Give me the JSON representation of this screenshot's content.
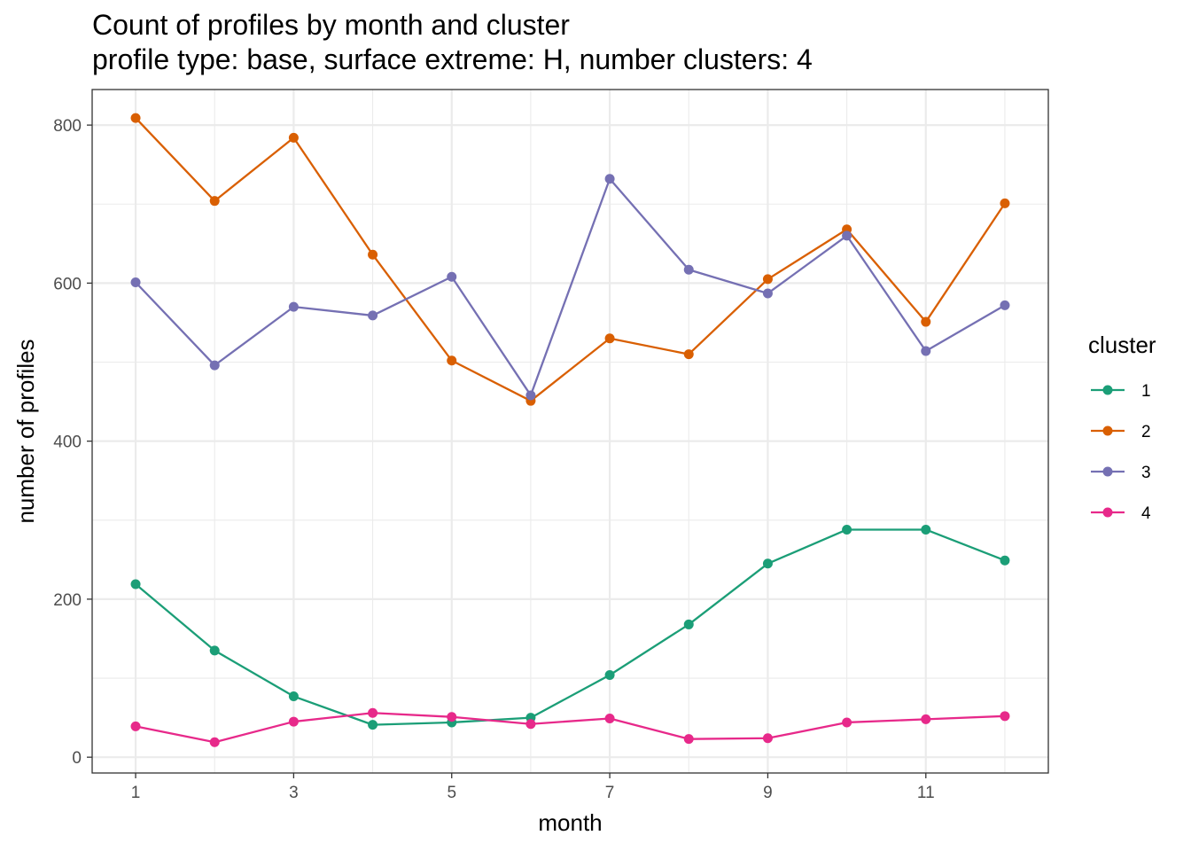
{
  "chart_data": {
    "type": "line",
    "title": "Count of profiles by month and cluster",
    "subtitle": "profile type: base, surface extreme: H, number clusters: 4",
    "xlabel": "month",
    "ylabel": "number of profiles",
    "xlim": [
      0.45,
      12.55
    ],
    "ylim": [
      -20,
      845
    ],
    "xticks": [
      1,
      3,
      5,
      7,
      9,
      11
    ],
    "xminor": [
      2,
      4,
      6,
      8,
      10,
      12
    ],
    "yticks": [
      0,
      200,
      400,
      600,
      800
    ],
    "yminor": [
      100,
      300,
      500,
      700
    ],
    "grid": true,
    "legend": {
      "title": "cluster",
      "position": "right"
    },
    "x": [
      1,
      2,
      3,
      4,
      5,
      6,
      7,
      8,
      9,
      10,
      11,
      12
    ],
    "series": [
      {
        "name": "1",
        "color": "#1B9E77",
        "values": [
          219,
          135,
          77,
          41,
          44,
          50,
          104,
          168,
          245,
          288,
          288,
          249
        ]
      },
      {
        "name": "2",
        "color": "#D95F02",
        "values": [
          809,
          704,
          784,
          636,
          502,
          451,
          530,
          510,
          605,
          668,
          551,
          701
        ]
      },
      {
        "name": "3",
        "color": "#7570B3",
        "values": [
          601,
          496,
          570,
          559,
          608,
          458,
          732,
          617,
          587,
          660,
          514,
          572
        ]
      },
      {
        "name": "4",
        "color": "#E7298A",
        "values": [
          39,
          19,
          45,
          56,
          51,
          42,
          49,
          23,
          24,
          44,
          48,
          52
        ]
      }
    ]
  }
}
